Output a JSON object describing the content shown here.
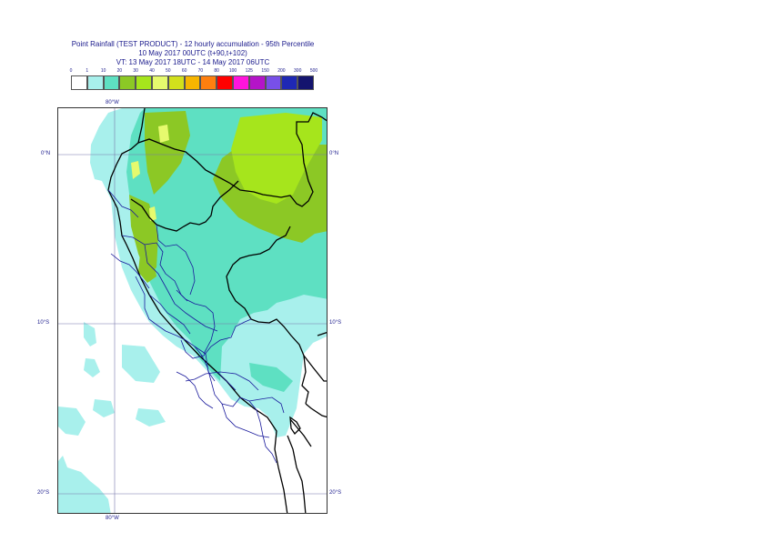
{
  "header": {
    "line1": "Point Rainfall (TEST PRODUCT) - 12 hourly accumulation - 95th Percentile",
    "line2": "10 May 2017 00UTC (t+90,t+102)",
    "line3": "VT: 13 May 2017 18UTC - 14 May 2017 06UTC"
  },
  "legend": {
    "thresholds": [
      "0",
      "1",
      "10",
      "20",
      "30",
      "40",
      "50",
      "60",
      "70",
      "80",
      "100",
      "125",
      "150",
      "200",
      "300",
      "500"
    ],
    "colors": [
      "#ffffff",
      "#a8f0ec",
      "#5ee0c2",
      "#8cc825",
      "#a6e51c",
      "#e6fa6e",
      "#d2e01c",
      "#f7b500",
      "#ff7f0f",
      "#ff0000",
      "#ff14dc",
      "#b414c8",
      "#7850e8",
      "#1e28b4",
      "#14146e"
    ]
  },
  "map": {
    "lat_labels": {
      "n0": "0°N",
      "s10": "10°S",
      "s20": "20°S"
    },
    "lon_labels": {
      "top": "80°W",
      "bottom": "80°W"
    },
    "colors": {
      "ocean": "#ffffff",
      "light": "#a8f0ec",
      "medium": "#5ee0c2",
      "green": "#8cc825",
      "lime": "#a6e51c",
      "yellow": "#e6fa6e",
      "border_country": "#000000",
      "border_region": "#1a1a9c",
      "grid": "#7777aa"
    }
  }
}
